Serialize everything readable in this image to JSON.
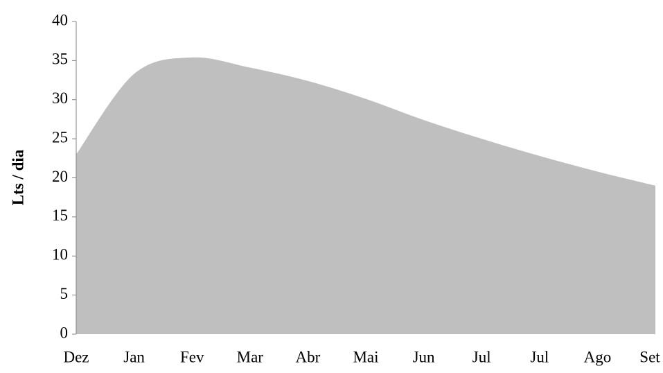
{
  "chart_data": {
    "type": "area",
    "y_label": "Lts / dia",
    "categories": [
      "Dez",
      "Jan",
      "Fev",
      "Mar",
      "Abr",
      "Mai",
      "Jun",
      "Jul",
      "Jul",
      "Ago",
      "Set"
    ],
    "values": [
      23,
      33.3,
      35.4,
      34.1,
      32.4,
      30.1,
      27.4,
      25,
      22.8,
      20.8,
      19
    ],
    "color": "#bfbfbf",
    "ylim": [
      0,
      40
    ],
    "yticks": [
      0,
      5,
      10,
      15,
      20,
      25,
      30,
      35,
      40
    ],
    "grid": false
  }
}
